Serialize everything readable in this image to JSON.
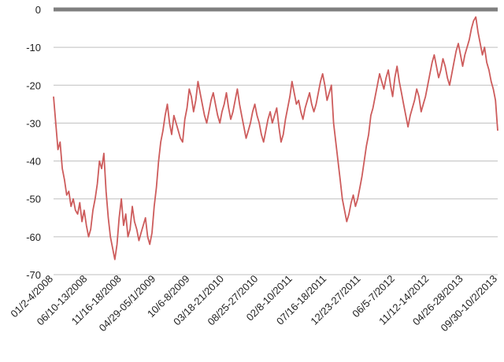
{
  "chart_data": {
    "type": "line",
    "title": "",
    "xlabel": "",
    "ylabel": "",
    "ylim": [
      -70,
      0
    ],
    "yticks": [
      0,
      -10,
      -20,
      -30,
      -40,
      -50,
      -60,
      -70
    ],
    "x_tick_labels": [
      "01/2-4/2008",
      "06/10-13/2008",
      "11/16-18/2008",
      "04/29-05/1/2009",
      "10/6-8/2009",
      "03/18-21/2010",
      "08/25-27/2010",
      "02/8-10/2011",
      "07/16-18/2011",
      "12/23-27/2011",
      "06/5-7/2012",
      "11/12-14/2012",
      "04/26-28/2013",
      "09/30-10/2/2013"
    ],
    "grid": true,
    "legend": "none",
    "series": [
      {
        "color": "#cd5c5c",
        "values": [
          -23,
          -30,
          -37,
          -35,
          -42,
          -45,
          -49,
          -48,
          -52,
          -50,
          -53,
          -54,
          -51,
          -56,
          -53,
          -57,
          -60,
          -58,
          -53,
          -50,
          -46,
          -40,
          -42,
          -38,
          -48,
          -55,
          -60,
          -63,
          -66,
          -62,
          -55,
          -50,
          -57,
          -54,
          -60,
          -58,
          -52,
          -56,
          -58,
          -61,
          -59,
          -57,
          -55,
          -60,
          -62,
          -59,
          -52,
          -47,
          -40,
          -35,
          -32,
          -28,
          -25,
          -30,
          -33,
          -28,
          -30,
          -32,
          -34,
          -35,
          -29,
          -26,
          -21,
          -23,
          -27,
          -24,
          -19,
          -22,
          -25,
          -28,
          -30,
          -27,
          -24,
          -22,
          -25,
          -28,
          -30,
          -27,
          -25,
          -22,
          -26,
          -29,
          -27,
          -24,
          -21,
          -25,
          -28,
          -31,
          -34,
          -32,
          -30,
          -27,
          -25,
          -28,
          -30,
          -33,
          -35,
          -32,
          -29,
          -27,
          -30,
          -28,
          -26,
          -31,
          -35,
          -33,
          -29,
          -26,
          -23,
          -19,
          -22,
          -25,
          -24,
          -27,
          -29,
          -26,
          -24,
          -22,
          -25,
          -27,
          -25,
          -22,
          -19,
          -17,
          -20,
          -24,
          -22,
          -20,
          -30,
          -35,
          -40,
          -45,
          -50,
          -53,
          -56,
          -54,
          -51,
          -49,
          -52,
          -50,
          -47,
          -44,
          -40,
          -36,
          -33,
          -28,
          -26,
          -23,
          -20,
          -17,
          -19,
          -21,
          -18,
          -16,
          -20,
          -23,
          -18,
          -15,
          -19,
          -22,
          -25,
          -28,
          -31,
          -28,
          -26,
          -24,
          -21,
          -23,
          -27,
          -25,
          -23,
          -20,
          -17,
          -14,
          -12,
          -15,
          -18,
          -16,
          -13,
          -15,
          -18,
          -20,
          -17,
          -14,
          -11,
          -9,
          -12,
          -15,
          -12,
          -10,
          -8,
          -5,
          -3,
          -2,
          -6,
          -9,
          -12,
          -10,
          -14,
          -16,
          -19,
          -21,
          -24,
          -32
        ]
      }
    ]
  },
  "colors": {
    "line": "#cd5c5c",
    "grid": "#bfbfbf",
    "zero_line": "#7f7f7f",
    "text": "#1f1f1f"
  }
}
